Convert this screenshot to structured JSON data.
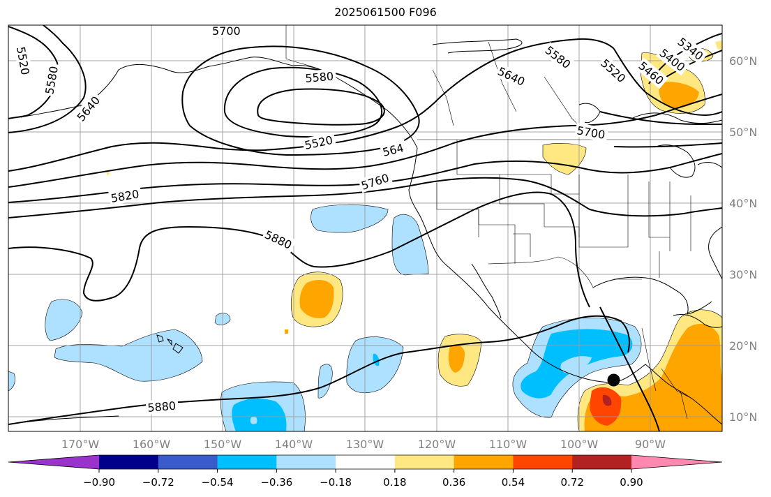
{
  "title": "2025061500 F096",
  "map": {
    "lon_range": [
      -180,
      -80
    ],
    "lat_range": [
      8,
      65
    ],
    "lat_ticks": [
      "60°N",
      "50°N",
      "40°N",
      "30°N",
      "20°N",
      "10°N"
    ],
    "lon_ticks": [
      "170°W",
      "160°W",
      "150°W",
      "140°W",
      "130°W",
      "120°W",
      "110°W",
      "100°W",
      "90°W"
    ],
    "contour_labels": [
      {
        "text": "5700",
        "where": "top-left"
      },
      {
        "text": "5520",
        "where": "far-left"
      },
      {
        "text": "5580",
        "where": "far-left"
      },
      {
        "text": "5640",
        "where": "far-left"
      },
      {
        "text": "5580",
        "where": "gulf-of-alaska"
      },
      {
        "text": "5520",
        "where": "gulf-of-alaska"
      },
      {
        "text": "564",
        "where": "pacific-northwest"
      },
      {
        "text": "5760",
        "where": "west-coast"
      },
      {
        "text": "5820",
        "where": "north-pacific"
      },
      {
        "text": "5880",
        "where": "subtropical-high"
      },
      {
        "text": "5880",
        "where": "tropical-pacific"
      },
      {
        "text": "5640",
        "where": "canada"
      },
      {
        "text": "5580",
        "where": "canada"
      },
      {
        "text": "5520",
        "where": "hudson-bay"
      },
      {
        "text": "5460",
        "where": "hudson-bay"
      },
      {
        "text": "5400",
        "where": "hudson-bay"
      },
      {
        "text": "5340",
        "where": "hudson-bay"
      },
      {
        "text": "5700",
        "where": "great-lakes"
      }
    ],
    "marker": {
      "name": "storm-center",
      "lon": -95.2,
      "lat": 15.2
    }
  },
  "colorbar": {
    "tick_labels": [
      "−0.90",
      "−0.72",
      "−0.54",
      "−0.36",
      "−0.18",
      "0.18",
      "0.36",
      "0.54",
      "0.72",
      "0.90"
    ],
    "colors": [
      "#9a33cc",
      "#00008b",
      "#3a5bcc",
      "#00bfff",
      "#aee0ff",
      "#ffffff",
      "#ffe882",
      "#ffa500",
      "#ff4500",
      "#b22222",
      "#ff88b0"
    ]
  }
}
